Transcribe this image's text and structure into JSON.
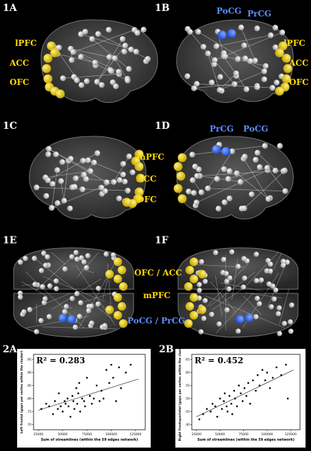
{
  "panels": {
    "p1a": {
      "tag": "1A",
      "labels": [
        "lPFC",
        "ACC",
        "OFC"
      ]
    },
    "p1b": {
      "tag": "1B",
      "labels": [
        "lPFC",
        "ACC",
        "OFC"
      ],
      "blue_labels": [
        "PoCG",
        "PrCG"
      ]
    },
    "p1c": {
      "tag": "1C",
      "labels": [
        "mPFC",
        "ACC",
        "OFC"
      ]
    },
    "p1d": {
      "tag": "1D",
      "labels": [],
      "blue_labels": [
        "PrCG",
        "PoCG"
      ]
    },
    "p1e": {
      "tag": "1E"
    },
    "p1f": {
      "tag": "1F"
    },
    "mid": {
      "labels": [
        "OFC / ACC",
        "mPFC"
      ],
      "blue_label": "PoCG / PrCG"
    }
  },
  "chart_data": [
    {
      "panel": "2A",
      "type": "scatter",
      "r2_text": "R² = 0.283",
      "xlabel": "Sum of streamlines (within the 59 edges network)",
      "ylabel": "Left frontal (gaps per vertex within the cluster)",
      "xticks": [
        "25000",
        "50000",
        "75000",
        "100000",
        "125000"
      ],
      "yticks": [
        ".70",
        ".75",
        ".80",
        ".85",
        ".90",
        ".95"
      ],
      "xlim": [
        20000,
        135000
      ],
      "ylim": [
        0.68,
        0.97
      ],
      "points": [
        [
          28000,
          0.76
        ],
        [
          33000,
          0.78
        ],
        [
          36000,
          0.77
        ],
        [
          40000,
          0.74
        ],
        [
          42000,
          0.79
        ],
        [
          45000,
          0.76
        ],
        [
          46000,
          0.82
        ],
        [
          48000,
          0.77
        ],
        [
          50000,
          0.75
        ],
        [
          52000,
          0.79
        ],
        [
          53000,
          0.78
        ],
        [
          55000,
          0.8
        ],
        [
          56000,
          0.77
        ],
        [
          58000,
          0.73
        ],
        [
          60000,
          0.81
        ],
        [
          61000,
          0.79
        ],
        [
          62000,
          0.76
        ],
        [
          64000,
          0.84
        ],
        [
          65000,
          0.78
        ],
        [
          66000,
          0.82
        ],
        [
          67000,
          0.86
        ],
        [
          68000,
          0.75
        ],
        [
          70000,
          0.8
        ],
        [
          72000,
          0.79
        ],
        [
          73000,
          0.77
        ],
        [
          75000,
          0.88
        ],
        [
          78000,
          0.81
        ],
        [
          80000,
          0.78
        ],
        [
          82000,
          0.8
        ],
        [
          85000,
          0.85
        ],
        [
          88000,
          0.79
        ],
        [
          90000,
          0.83
        ],
        [
          92000,
          0.8
        ],
        [
          95000,
          0.91
        ],
        [
          98000,
          0.86
        ],
        [
          100000,
          0.93
        ],
        [
          102000,
          0.88
        ],
        [
          105000,
          0.79
        ],
        [
          108000,
          0.92
        ],
        [
          110000,
          0.84
        ],
        [
          115000,
          0.9
        ],
        [
          120000,
          0.93
        ]
      ],
      "fit": [
        [
          25000,
          0.755
        ],
        [
          128000,
          0.875
        ]
      ]
    },
    {
      "panel": "2B",
      "type": "scatter",
      "r2_text": "R² = 0.452",
      "xlabel": "Sum of streamlines (within the 59 edges network)",
      "ylabel": "Right frontoparietal (gaps per vertex within the cluster)",
      "xticks": [
        "25000",
        "50000",
        "75000",
        "100000",
        "125000"
      ],
      "yticks": [
        ".40",
        ".45",
        ".50",
        ".55",
        ".60",
        ".65"
      ],
      "xlim": [
        20000,
        135000
      ],
      "ylim": [
        0.38,
        0.67
      ],
      "points": [
        [
          28000,
          0.42
        ],
        [
          32000,
          0.44
        ],
        [
          36000,
          0.46
        ],
        [
          40000,
          0.45
        ],
        [
          42000,
          0.48
        ],
        [
          45000,
          0.47
        ],
        [
          47000,
          0.43
        ],
        [
          50000,
          0.5
        ],
        [
          52000,
          0.46
        ],
        [
          54000,
          0.49
        ],
        [
          55000,
          0.52
        ],
        [
          57000,
          0.47
        ],
        [
          58000,
          0.45
        ],
        [
          60000,
          0.51
        ],
        [
          62000,
          0.48
        ],
        [
          63000,
          0.44
        ],
        [
          65000,
          0.53
        ],
        [
          66000,
          0.5
        ],
        [
          68000,
          0.47
        ],
        [
          70000,
          0.55
        ],
        [
          72000,
          0.52
        ],
        [
          74000,
          0.49
        ],
        [
          76000,
          0.54
        ],
        [
          78000,
          0.51
        ],
        [
          80000,
          0.56
        ],
        [
          82000,
          0.48
        ],
        [
          85000,
          0.57
        ],
        [
          88000,
          0.53
        ],
        [
          90000,
          0.59
        ],
        [
          92000,
          0.55
        ],
        [
          95000,
          0.61
        ],
        [
          98000,
          0.57
        ],
        [
          100000,
          0.6
        ],
        [
          103000,
          0.54
        ],
        [
          106000,
          0.58
        ],
        [
          110000,
          0.62
        ],
        [
          115000,
          0.59
        ],
        [
          120000,
          0.63
        ],
        [
          122000,
          0.5
        ]
      ],
      "fit": [
        [
          25000,
          0.43
        ],
        [
          128000,
          0.61
        ]
      ]
    }
  ],
  "colors": {
    "yellow": "#ffd900",
    "blue": "#5b8cff",
    "node": "#e8e8e8"
  }
}
